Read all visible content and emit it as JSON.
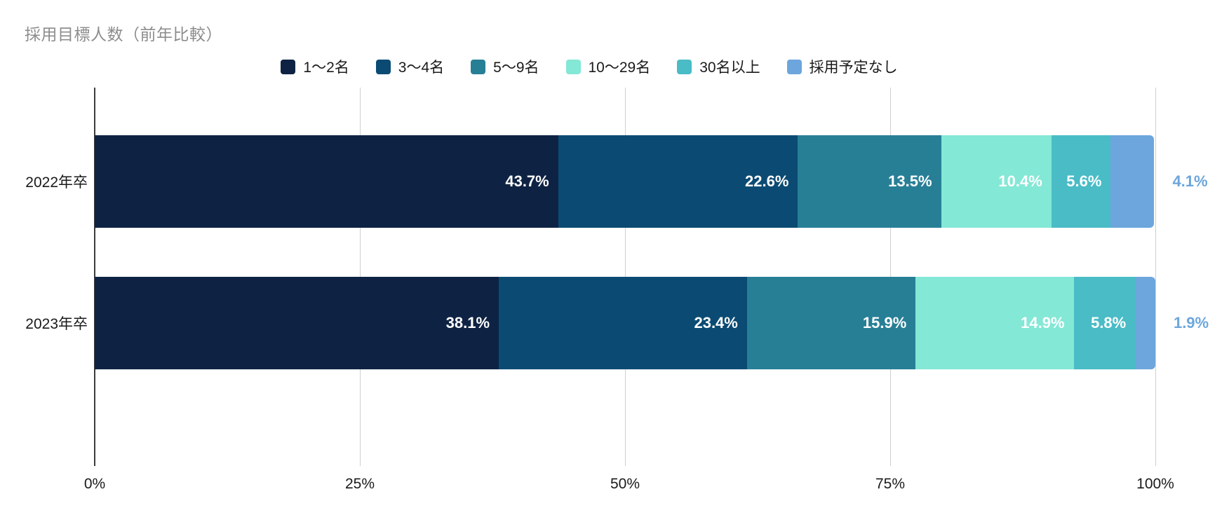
{
  "chart_data": {
    "type": "bar",
    "stacked": true,
    "orientation": "horizontal",
    "title": "採用目標人数（前年比較）",
    "title_color": "#8d8d8d",
    "categories": [
      "2022年卒",
      "2023年卒"
    ],
    "series": [
      {
        "name": "1～2名",
        "color": "#0e2343",
        "values": [
          43.7,
          38.1
        ]
      },
      {
        "name": "3～4名",
        "color": "#0b4b73",
        "values": [
          22.6,
          23.4
        ]
      },
      {
        "name": "5～9名",
        "color": "#277f96",
        "values": [
          13.5,
          15.9
        ]
      },
      {
        "name": "10～29名",
        "color": "#84e8d6",
        "values": [
          10.4,
          14.9
        ]
      },
      {
        "name": "30名以上",
        "color": "#49bcc6",
        "values": [
          5.6,
          5.8
        ]
      },
      {
        "name": "採用予定なし",
        "color": "#6ca6dc",
        "values": [
          4.1,
          1.9
        ],
        "label_outside": true
      }
    ],
    "value_suffix": "%",
    "x_ticks": [
      "0%",
      "25%",
      "50%",
      "75%",
      "100%"
    ],
    "xlim": [
      0,
      100
    ],
    "grid": true,
    "legend_position": "top",
    "inside_label_color": "#ffffff",
    "outside_label_color": "#6ca6dc",
    "gridline_color": "#cfcfcf",
    "axis_color": "#3c3c3c"
  }
}
